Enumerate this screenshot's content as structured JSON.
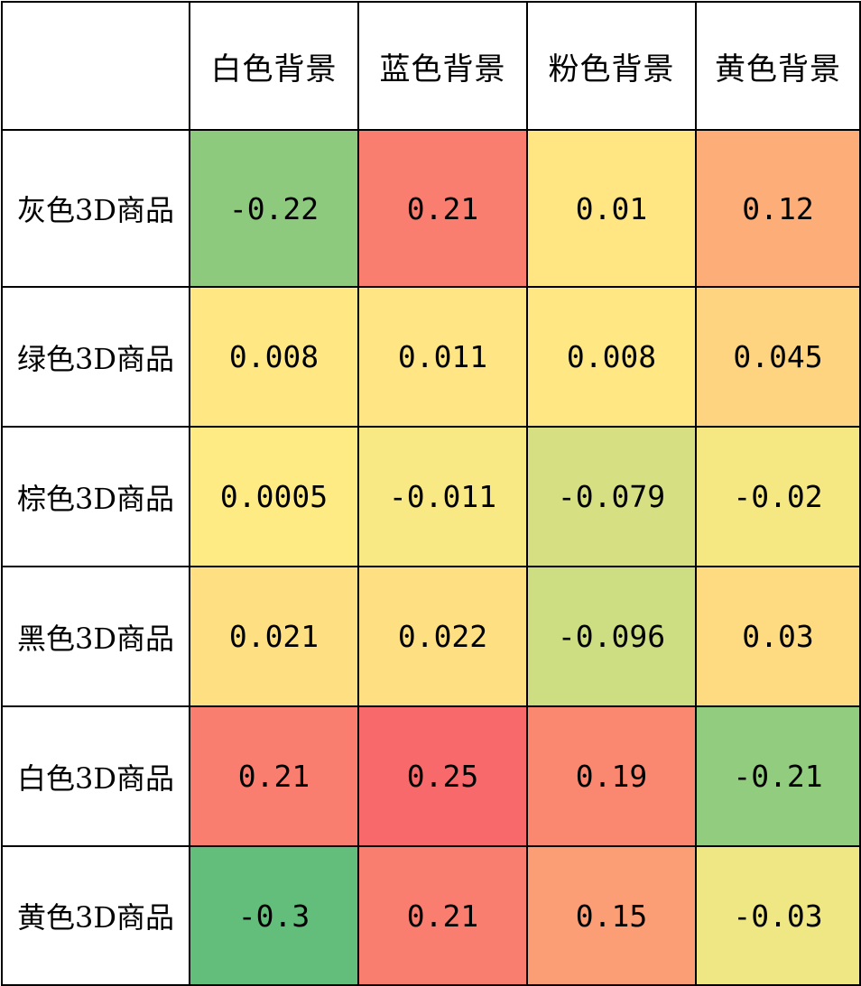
{
  "chart_data": {
    "type": "heatmap",
    "columns": [
      "白色背景",
      "蓝色背景",
      "粉色背景",
      "黄色背景"
    ],
    "rows": [
      {
        "label": "灰色3D商品",
        "values": [
          "-0.22",
          "0.21",
          "0.01",
          "0.12"
        ]
      },
      {
        "label": "绿色3D商品",
        "values": [
          "0.008",
          "0.011",
          "0.008",
          "0.045"
        ]
      },
      {
        "label": "棕色3D商品",
        "values": [
          "0.0005",
          "-0.011",
          "-0.079",
          "-0.02"
        ]
      },
      {
        "label": "黑色3D商品",
        "values": [
          "0.021",
          "0.022",
          "-0.096",
          "0.03"
        ]
      },
      {
        "label": "白色3D商品",
        "values": [
          "0.21",
          "0.25",
          "0.19",
          "-0.21"
        ]
      },
      {
        "label": "黄色3D商品",
        "values": [
          "-0.3",
          "0.21",
          "0.15",
          "-0.03"
        ]
      }
    ],
    "color_scale": {
      "low": "#63BE7B",
      "mid": "#FFEB84",
      "high": "#F8696B"
    }
  }
}
